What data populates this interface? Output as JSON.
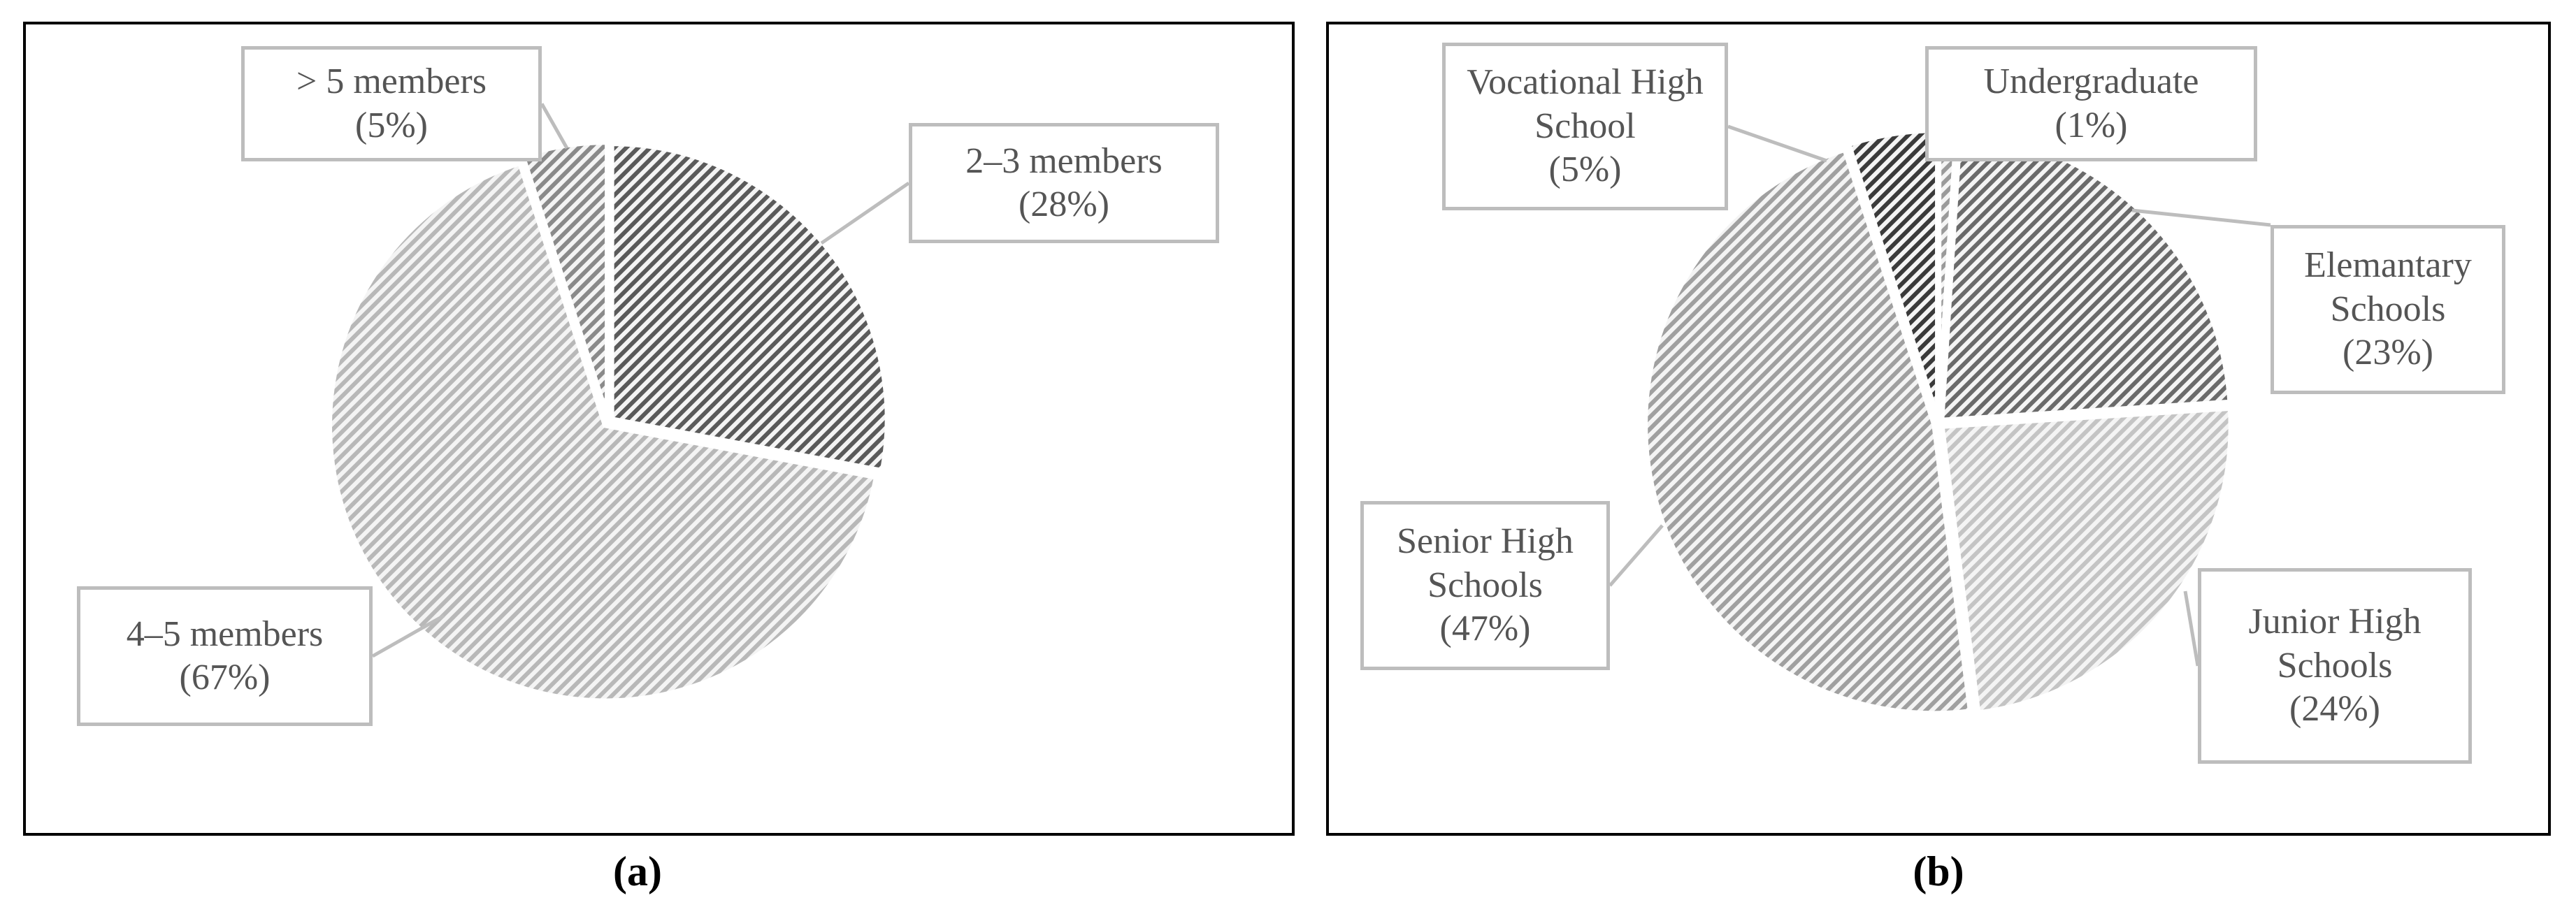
{
  "chart_data": [
    {
      "type": "pie",
      "caption": "(a)",
      "categories": [
        "2–3 members",
        "4–5 members",
        "> 5 members"
      ],
      "values": [
        28,
        67,
        5
      ],
      "value_labels": [
        "(28%)",
        "(67%)",
        "(5%)"
      ],
      "colors": [
        "#5a5a5a",
        "#b8b8b8",
        "#8a8a8a"
      ]
    },
    {
      "type": "pie",
      "caption": "(b)",
      "categories": [
        "Undergraduate",
        "Elemantary Schools",
        "Junior High Schools",
        "Senior High Schools",
        "Vocational High School"
      ],
      "values": [
        1,
        23,
        24,
        47,
        5
      ],
      "value_labels": [
        "(1%)",
        "(23%)",
        "(24%)",
        "(47%)",
        "(5%)"
      ],
      "colors": [
        "#9a9a9a",
        "#6a6a6a",
        "#c4c4c4",
        "#a0a0a0",
        "#3a3a3a"
      ]
    }
  ]
}
